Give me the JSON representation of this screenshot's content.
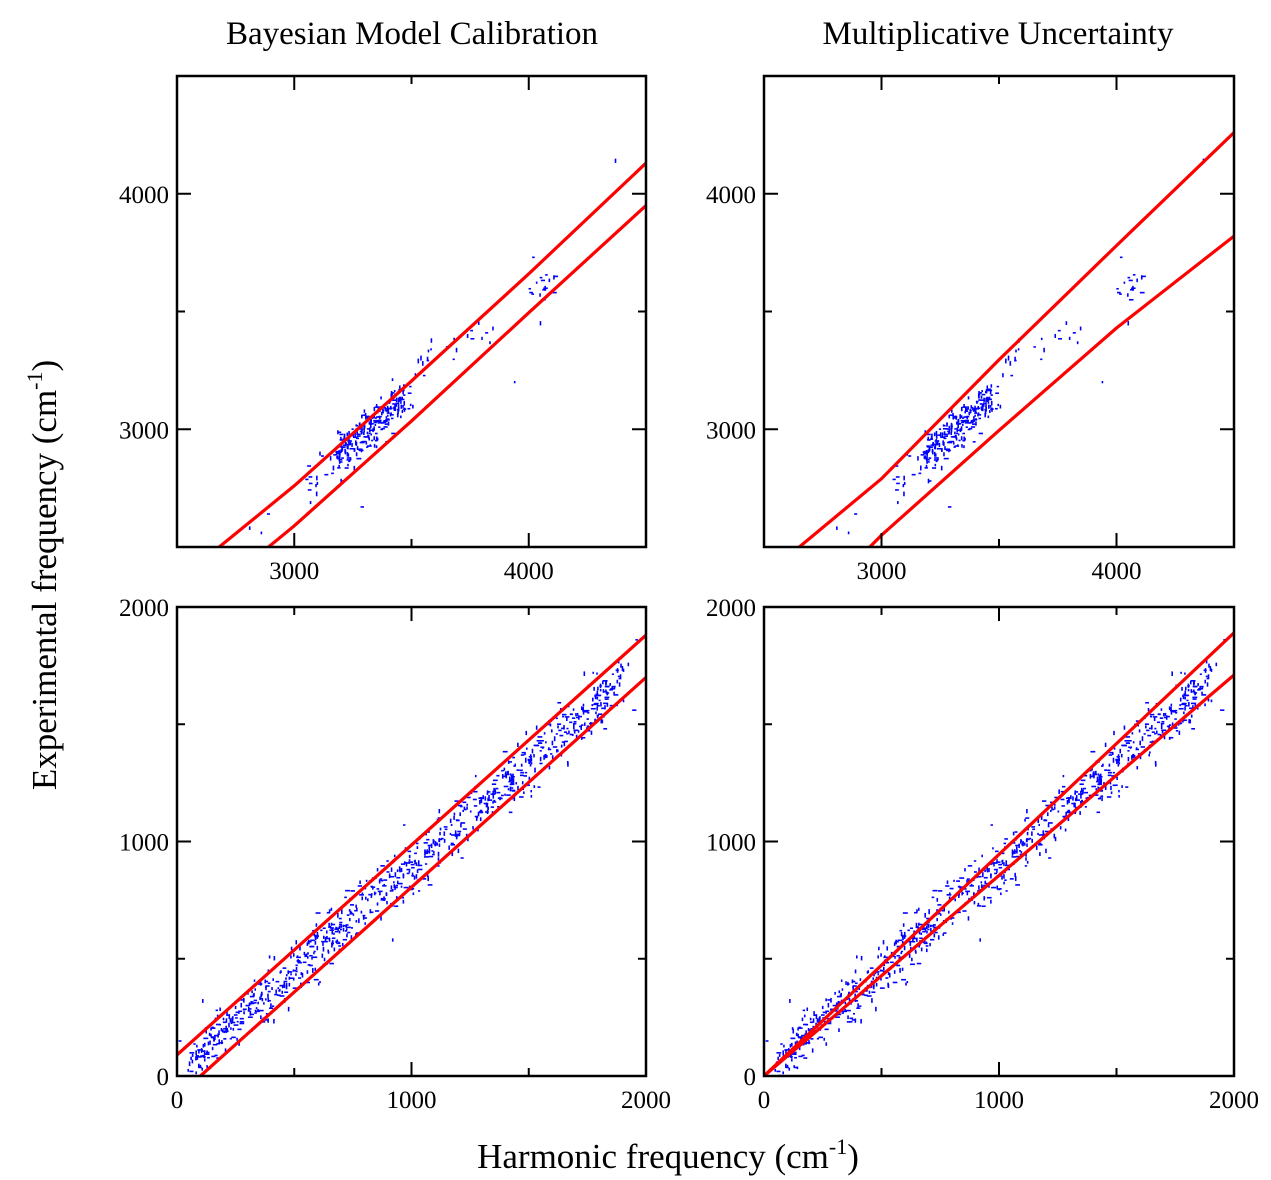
{
  "figure": {
    "columns": [
      "Bayesian Model Calibration",
      "Multiplicative Uncertainty"
    ],
    "ylabel": {
      "text": "Experimental frequency (cm",
      "sup": "-1",
      "close": ")"
    },
    "xlabel": {
      "text": "Harmonic frequency (cm",
      "sup": "-1",
      "close": ")"
    }
  },
  "colors": {
    "band": "#ff0000",
    "points": "#0000ff",
    "axes": "#000000"
  },
  "chart_data": [
    {
      "type": "scatter",
      "panel": "top-left",
      "title": "Bayesian Model Calibration",
      "xlim": [
        2500,
        4500
      ],
      "ylim": [
        2500,
        4500
      ],
      "xticks_major": [
        3000,
        4000
      ],
      "xticks_minor": [
        3500
      ],
      "yticks_major": [
        3000,
        4000
      ],
      "yticks_minor": [
        3500
      ],
      "band_upper": [
        [
          2680,
          2500
        ],
        [
          3000,
          2760
        ],
        [
          3500,
          3205
        ],
        [
          4000,
          3660
        ],
        [
          4500,
          4130
        ]
      ],
      "band_lower": [
        [
          2890,
          2500
        ],
        [
          3000,
          2590
        ],
        [
          3500,
          3035
        ],
        [
          4000,
          3495
        ],
        [
          4500,
          3950
        ]
      ],
      "clusters": [
        {
          "x0": 3180,
          "y0": 2880,
          "x1": 3480,
          "y1": 3150,
          "n": 260,
          "spread": 45
        },
        {
          "x0": 3050,
          "y0": 2740,
          "x1": 3180,
          "y1": 2880,
          "n": 14,
          "spread": 45
        },
        {
          "x0": 3530,
          "y0": 3260,
          "x1": 3850,
          "y1": 3420,
          "n": 22,
          "spread": 40
        },
        {
          "x0": 4000,
          "y0": 3550,
          "x1": 4120,
          "y1": 3660,
          "n": 16,
          "spread": 40
        }
      ],
      "points": [
        [
          2810,
          2580
        ],
        [
          2860,
          2560
        ],
        [
          2890,
          2640
        ],
        [
          3200,
          2780
        ],
        [
          3290,
          2670
        ],
        [
          3940,
          3200
        ],
        [
          4020,
          3730
        ],
        [
          4050,
          3450
        ],
        [
          4370,
          4140
        ]
      ]
    },
    {
      "type": "scatter",
      "panel": "top-right",
      "title": "Multiplicative Uncertainty",
      "xlim": [
        2500,
        4500
      ],
      "ylim": [
        2500,
        4500
      ],
      "xticks_major": [
        3000,
        4000
      ],
      "xticks_minor": [
        3500
      ],
      "yticks_major": [
        3000,
        4000
      ],
      "yticks_minor": [
        3500
      ],
      "band_upper": [
        [
          2650,
          2500
        ],
        [
          3000,
          2790
        ],
        [
          3500,
          3295
        ],
        [
          4000,
          3780
        ],
        [
          4500,
          4260
        ]
      ],
      "band_lower": [
        [
          2950,
          2500
        ],
        [
          3000,
          2550
        ],
        [
          3500,
          2995
        ],
        [
          4000,
          3430
        ],
        [
          4500,
          3820
        ]
      ],
      "clusters": [
        {
          "x0": 3180,
          "y0": 2880,
          "x1": 3480,
          "y1": 3150,
          "n": 260,
          "spread": 45
        },
        {
          "x0": 3050,
          "y0": 2740,
          "x1": 3180,
          "y1": 2880,
          "n": 14,
          "spread": 45
        },
        {
          "x0": 3530,
          "y0": 3260,
          "x1": 3850,
          "y1": 3420,
          "n": 22,
          "spread": 40
        },
        {
          "x0": 4000,
          "y0": 3550,
          "x1": 4120,
          "y1": 3660,
          "n": 16,
          "spread": 40
        }
      ],
      "points": [
        [
          2810,
          2580
        ],
        [
          2860,
          2560
        ],
        [
          2890,
          2640
        ],
        [
          3200,
          2780
        ],
        [
          3290,
          2670
        ],
        [
          3940,
          3200
        ],
        [
          4020,
          3730
        ],
        [
          4050,
          3450
        ],
        [
          4370,
          4140
        ]
      ]
    },
    {
      "type": "scatter",
      "panel": "bottom-left",
      "xlim": [
        0,
        2000
      ],
      "ylim": [
        0,
        2000
      ],
      "xticks_major": [
        0,
        1000,
        2000
      ],
      "xticks_minor": [
        500,
        1500
      ],
      "yticks_major": [
        0,
        1000,
        2000
      ],
      "yticks_minor": [
        500,
        1500
      ],
      "band_upper": [
        [
          0,
          90
        ],
        [
          2000,
          1880
        ]
      ],
      "band_lower": [
        [
          100,
          0
        ],
        [
          2000,
          1700
        ]
      ],
      "clusters": [
        {
          "x0": 50,
          "y0": 50,
          "x1": 1900,
          "y1": 1690,
          "n": 900,
          "spread": 55
        }
      ],
      "points": [
        [
          110,
          320
        ],
        [
          1200,
          960
        ],
        [
          1500,
          1240
        ],
        [
          1950,
          1560
        ],
        [
          1960,
          1860
        ],
        [
          920,
          580
        ]
      ]
    },
    {
      "type": "scatter",
      "panel": "bottom-right",
      "xlim": [
        0,
        2000
      ],
      "ylim": [
        0,
        2000
      ],
      "xticks_major": [
        0,
        1000,
        2000
      ],
      "xticks_minor": [
        500,
        1500
      ],
      "yticks_major": [
        0,
        1000,
        2000
      ],
      "yticks_minor": [
        500,
        1500
      ],
      "band_upper": [
        [
          0,
          0
        ],
        [
          2000,
          1890
        ]
      ],
      "band_lower": [
        [
          0,
          0
        ],
        [
          2000,
          1710
        ]
      ],
      "clusters": [
        {
          "x0": 50,
          "y0": 50,
          "x1": 1900,
          "y1": 1690,
          "n": 900,
          "spread": 55
        }
      ],
      "points": [
        [
          110,
          320
        ],
        [
          1200,
          960
        ],
        [
          1500,
          1240
        ],
        [
          1950,
          1560
        ],
        [
          1960,
          1860
        ],
        [
          920,
          580
        ]
      ]
    }
  ]
}
